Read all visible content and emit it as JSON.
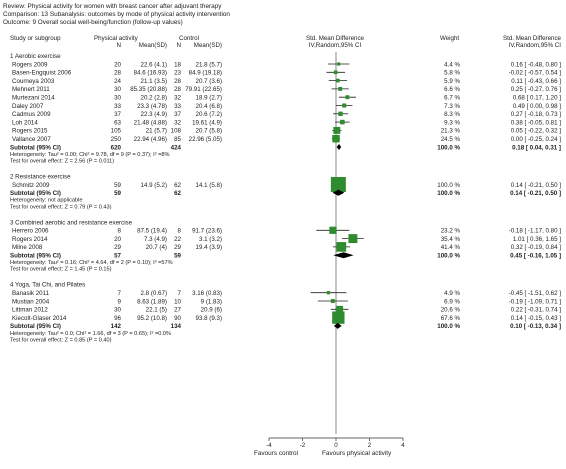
{
  "header": {
    "review": "Review:  Physical activity for women with breast cancer after adjuvant therapy",
    "comparison": "Comparison:  13 Subanalysis: outcomes by mode of physical activity intervention",
    "outcome": "Outcome:  9 Overall social well-being/function (follow-up values)"
  },
  "columns": {
    "study": "Study or subgroup",
    "pa_group": "Physical activity",
    "control_group": "Control",
    "n": "N",
    "meansd": "Mean(SD)",
    "smd_plot_1": "Std. Mean Difference",
    "smd_plot_2": "IV,Random,95% CI",
    "weight": "Weight",
    "smd_text_1": "Std. Mean Difference",
    "smd_text_2": "IV,Random,95% CI"
  },
  "footer": {
    "favours_left": "Favours control",
    "favours_right": "Favours physical activity"
  },
  "chart_data": {
    "type": "forest",
    "axis": {
      "xlim": [
        -4,
        4
      ],
      "ticks": [
        "-4",
        "-2",
        "0",
        "2",
        "4"
      ],
      "ref_line": 0
    },
    "colors": {
      "study_box": "#2e8b2e",
      "line": "#222222",
      "diamond": "#000000"
    },
    "subgroups": [
      {
        "title": "1 Aerobic exercise",
        "studies": [
          {
            "name": "Rogers 2009",
            "n1": "20",
            "m1": "22.6 (4.1)",
            "n2": "18",
            "m2": "21.8 (5.7)",
            "weight": "4.4 %",
            "ci_text": "0.16 [ -0.48, 0.80 ]",
            "est": 0.16,
            "lo": -0.48,
            "hi": 0.8,
            "w": 4.4
          },
          {
            "name": "Basen-Engquist 2006",
            "n1": "28",
            "m1": "84.6 (16.93)",
            "n2": "23",
            "m2": "84.9 (19.18)",
            "weight": "5.8 %",
            "ci_text": "-0.02 [ -0.57, 0.54 ]",
            "est": -0.02,
            "lo": -0.57,
            "hi": 0.54,
            "w": 5.8
          },
          {
            "name": "Courneya 2003",
            "n1": "24",
            "m1": "21.1 (3.5)",
            "n2": "28",
            "m2": "20.7 (3.6)",
            "weight": "5.9 %",
            "ci_text": "0.11 [ -0.43, 0.66 ]",
            "est": 0.11,
            "lo": -0.43,
            "hi": 0.66,
            "w": 5.9
          },
          {
            "name": "Mehnert 2011",
            "n1": "30",
            "m1": "85.35 (20.88)",
            "n2": "28",
            "m2": "79.91 (22.65)",
            "weight": "6.6 %",
            "ci_text": "0.25 [ -0.27, 0.76 ]",
            "est": 0.25,
            "lo": -0.27,
            "hi": 0.76,
            "w": 6.6
          },
          {
            "name": "Murtezani 2014",
            "n1": "30",
            "m1": "20.2 (2.8)",
            "n2": "32",
            "m2": "18.9 (2.7)",
            "weight": "6.7 %",
            "ci_text": "0.68 [ 0.17, 1.20 ]",
            "est": 0.68,
            "lo": 0.17,
            "hi": 1.2,
            "w": 6.7
          },
          {
            "name": "Daley 2007",
            "n1": "33",
            "m1": "23.3 (4.78)",
            "n2": "33",
            "m2": "20.4 (6.8)",
            "weight": "7.3 %",
            "ci_text": "0.49 [ 0.00, 0.98 ]",
            "est": 0.49,
            "lo": 0.0,
            "hi": 0.98,
            "w": 7.3
          },
          {
            "name": "Cadmus 2009",
            "n1": "37",
            "m1": "22.3 (4.9)",
            "n2": "37",
            "m2": "20.6 (7.2)",
            "weight": "8.3 %",
            "ci_text": "0.27 [ -0.18, 0.73 ]",
            "est": 0.27,
            "lo": -0.18,
            "hi": 0.73,
            "w": 8.3
          },
          {
            "name": "Loh 2014",
            "n1": "63",
            "m1": "21.48 (4.88)",
            "n2": "32",
            "m2": "19.61 (4.9)",
            "weight": "9.3 %",
            "ci_text": "0.38 [ -0.05, 0.81 ]",
            "est": 0.38,
            "lo": -0.05,
            "hi": 0.81,
            "w": 9.3
          },
          {
            "name": "Rogers 2015",
            "n1": "105",
            "m1": "21 (5.7)",
            "n2": "108",
            "m2": "20.7 (5.8)",
            "weight": "21.3 %",
            "ci_text": "0.05 [ -0.22, 0.32 ]",
            "est": 0.05,
            "lo": -0.22,
            "hi": 0.32,
            "w": 21.3
          },
          {
            "name": "Vallance 2007",
            "n1": "250",
            "m1": "22.94 (4.96)",
            "n2": "85",
            "m2": "22.96 (5.05)",
            "weight": "24.5 %",
            "ci_text": "0.00 [ -0.25, 0.24 ]",
            "est": 0.0,
            "lo": -0.25,
            "hi": 0.24,
            "w": 24.5
          }
        ],
        "subtotal": {
          "label": "Subtotal (95% CI)",
          "n1": "620",
          "n2": "424",
          "weight": "100.0 %",
          "ci_text": "0.18 [ 0.04, 0.31 ]",
          "est": 0.18,
          "lo": 0.04,
          "hi": 0.31
        },
        "heterogeneity": "Heterogeneity: Tau² = 0.00; Chi² = 9.78, df = 9 (P = 0.37); I² =8%",
        "overall": "Test for overall effect: Z = 2.56 (P = 0.011)"
      },
      {
        "title": "2 Resistance exercise",
        "studies": [
          {
            "name": "Schmitz 2009",
            "n1": "59",
            "m1": "14.9 (5.2)",
            "n2": "62",
            "m2": "14.1 (5.8)",
            "weight": "100.0 %",
            "ci_text": "0.14 [ -0.21, 0.50 ]",
            "est": 0.14,
            "lo": -0.21,
            "hi": 0.5,
            "w": 100.0
          }
        ],
        "subtotal": {
          "label": "Subtotal (95% CI)",
          "n1": "59",
          "n2": "62",
          "weight": "100.0 %",
          "ci_text": "0.14 [ -0.21, 0.50 ]",
          "est": 0.14,
          "lo": -0.21,
          "hi": 0.5
        },
        "heterogeneity": "Heterogeneity: not applicable",
        "overall": "Test for overall effect: Z = 0.79 (P = 0.43)"
      },
      {
        "title": "3 Combined aerobic and resistance exercise",
        "studies": [
          {
            "name": "Herrero 2006",
            "n1": "8",
            "m1": "87.5 (19.4)",
            "n2": "8",
            "m2": "91.7 (23.6)",
            "weight": "23.2 %",
            "ci_text": "-0.18 [ -1.17, 0.80 ]",
            "est": -0.18,
            "lo": -1.17,
            "hi": 0.8,
            "w": 23.2
          },
          {
            "name": "Rogers 2014",
            "n1": "20",
            "m1": "7.3 (4.9)",
            "n2": "22",
            "m2": "3.1 (3.2)",
            "weight": "35.4 %",
            "ci_text": "1.01 [ 0.36, 1.65 ]",
            "est": 1.01,
            "lo": 0.36,
            "hi": 1.65,
            "w": 35.4
          },
          {
            "name": "Milne 2008",
            "n1": "29",
            "m1": "20.7 (4)",
            "n2": "29",
            "m2": "19.4 (3.9)",
            "weight": "41.4 %",
            "ci_text": "0.32 [ -0.19, 0.84 ]",
            "est": 0.32,
            "lo": -0.19,
            "hi": 0.84,
            "w": 41.4
          }
        ],
        "subtotal": {
          "label": "Subtotal (95% CI)",
          "n1": "57",
          "n2": "59",
          "weight": "100.0 %",
          "ci_text": "0.45 [ -0.16, 1.05 ]",
          "est": 0.45,
          "lo": -0.16,
          "hi": 1.05
        },
        "heterogeneity": "Heterogeneity: Tau² = 0.16; Chi² = 4.64, df = 2 (P = 0.10); I² =57%",
        "overall": "Test for overall effect: Z = 1.45 (P = 0.15)"
      },
      {
        "title": "4 Yoga, Tai Chi, and Pilates",
        "studies": [
          {
            "name": "Banasik 2011",
            "n1": "7",
            "m1": "2.8 (0.67)",
            "n2": "7",
            "m2": "3.16 (0.83)",
            "weight": "4.9 %",
            "ci_text": "-0.45 [ -1.51, 0.62 ]",
            "est": -0.45,
            "lo": -1.51,
            "hi": 0.62,
            "w": 4.9
          },
          {
            "name": "Mustian 2004",
            "n1": "9",
            "m1": "8.63 (1.89)",
            "n2": "10",
            "m2": "9 (1.83)",
            "weight": "6.9 %",
            "ci_text": "-0.19 [ -1.09, 0.71 ]",
            "est": -0.19,
            "lo": -1.09,
            "hi": 0.71,
            "w": 6.9
          },
          {
            "name": "Littman 2012",
            "n1": "30",
            "m1": "22.1 (5)",
            "n2": "27",
            "m2": "20.9 (6)",
            "weight": "20.6 %",
            "ci_text": "0.22 [ -0.31, 0.74 ]",
            "est": 0.22,
            "lo": -0.31,
            "hi": 0.74,
            "w": 20.6
          },
          {
            "name": "Kiecolt-Glaser 2014",
            "n1": "96",
            "m1": "95.2 (10.8)",
            "n2": "90",
            "m2": "93.8 (9.3)",
            "weight": "67.6 %",
            "ci_text": "0.14 [ -0.15, 0.43 ]",
            "est": 0.14,
            "lo": -0.15,
            "hi": 0.43,
            "w": 67.6
          }
        ],
        "subtotal": {
          "label": "Subtotal (95% CI)",
          "n1": "142",
          "n2": "134",
          "weight": "100.0 %",
          "ci_text": "0.10 [ -0.13, 0.34 ]",
          "est": 0.1,
          "lo": -0.13,
          "hi": 0.34
        },
        "heterogeneity": "Heterogeneity: Tau² = 0.0; Chi² = 1.66, df = 3 (P = 0.65); I² =0.0%",
        "overall": "Test for overall effect: Z = 0.85 (P = 0.40)"
      }
    ]
  }
}
